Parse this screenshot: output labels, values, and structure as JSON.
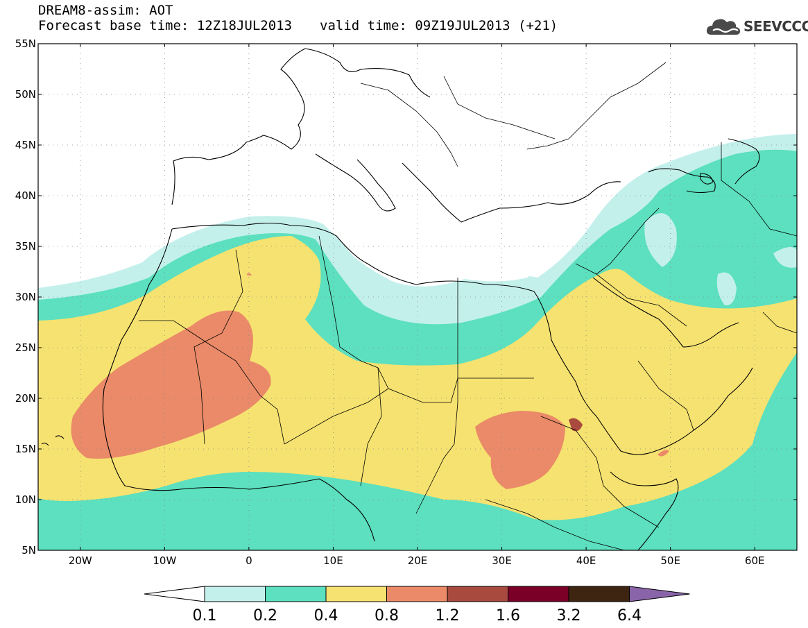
{
  "header": {
    "line1": "DREAM8-assim: AOT",
    "base_time": "Forecast base time: 12Z18JUL2013",
    "valid_time": "valid time: 09Z19JUL2013 (+21)"
  },
  "logo": {
    "text": "SEEVCCC",
    "icon": "cloud-icon"
  },
  "axes": {
    "lat_labels": [
      "55N",
      "50N",
      "45N",
      "40N",
      "35N",
      "30N",
      "25N",
      "20N",
      "15N",
      "10N",
      "5N"
    ],
    "lon_labels": [
      "20W",
      "10W",
      "0",
      "10E",
      "20E",
      "30E",
      "40E",
      "50E",
      "60E"
    ]
  },
  "colorbar": {
    "labels": [
      "0.1",
      "0.2",
      "0.4",
      "0.8",
      "1.2",
      "1.6",
      "3.2",
      "6.4"
    ],
    "colors": [
      "#ffffff",
      "#c4f0ec",
      "#5ce0bf",
      "#f6e270",
      "#ea8a68",
      "#a84a3e",
      "#7a0028",
      "#3d2512",
      "#8a64a8"
    ]
  },
  "palette": {
    "c01": "#c4f0ec",
    "c02": "#5ce0bf",
    "c04": "#f6e270",
    "c08": "#ea8a68",
    "c12": "#a84a3e"
  }
}
